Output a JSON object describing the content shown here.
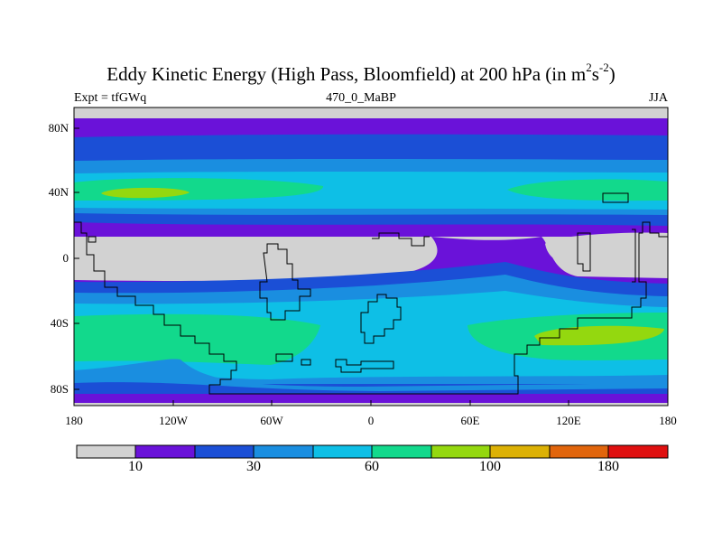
{
  "title": {
    "main": "Eddy Kinetic Energy (High Pass, Bloomfield) at 200 hPa (in m",
    "sup1": "2",
    "mid": "s",
    "sup2": "-2",
    "end": ")"
  },
  "subtitles": {
    "left": "Expt = tfGWq",
    "center": "470_0_MaBP",
    "right": "JJA"
  },
  "axes": {
    "y_ticks": [
      "80N",
      "40N",
      "0",
      "40S",
      "80S"
    ],
    "x_ticks": [
      "180",
      "120W",
      "60W",
      "0",
      "60E",
      "120E",
      "180"
    ]
  },
  "colorbar": {
    "colors": [
      "#d2d2d2",
      "#6a12d9",
      "#1b4fd6",
      "#1a8ee0",
      "#0ebfe6",
      "#12d98c",
      "#94d80f",
      "#dcb105",
      "#e1650c",
      "#df1010"
    ],
    "labels": [
      "10",
      "30",
      "60",
      "100",
      "180"
    ]
  },
  "map_colors": {
    "gray": "#d2d2d2",
    "violet": "#6a12d9",
    "blue": "#1b4fd6",
    "mid_blue": "#1a8ee0",
    "cyan": "#0ebfe6",
    "green": "#12d98c",
    "yellow_green": "#94d80f",
    "coast": "#000000"
  }
}
